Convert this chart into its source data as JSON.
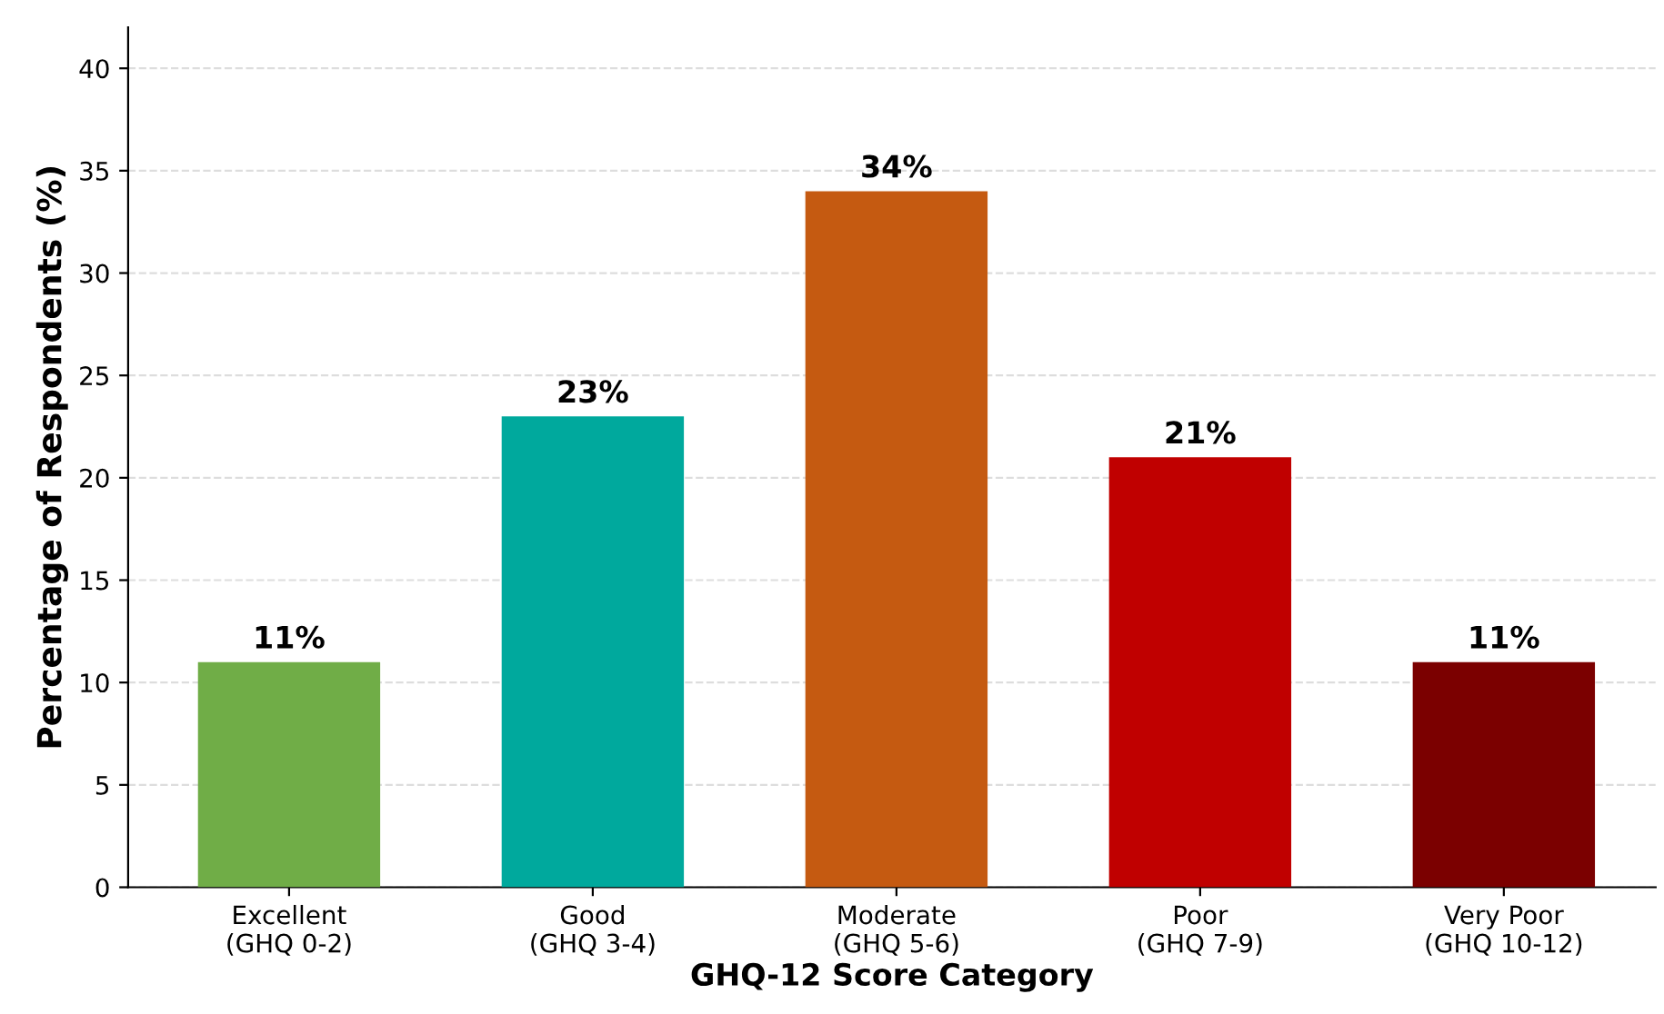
{
  "chart_data": {
    "type": "bar",
    "xlabel": "GHQ-12 Score Category",
    "ylabel": "Percentage of Respondents (%)",
    "categories": [
      "Excellent\n(GHQ 0-2)",
      "Good\n(GHQ 3-4)",
      "Moderate\n(GHQ 5-6)",
      "Poor\n(GHQ 7-9)",
      "Very Poor\n(GHQ 10-12)"
    ],
    "values": [
      11,
      23,
      34,
      21,
      11
    ],
    "value_labels": [
      "11%",
      "23%",
      "34%",
      "21%",
      "11%"
    ],
    "colors": [
      "#70ad47",
      "#00a99d",
      "#c55a11",
      "#c00000",
      "#7b0000"
    ],
    "ylim": [
      0,
      42
    ],
    "yticks": [
      0,
      5,
      10,
      15,
      20,
      25,
      30,
      35,
      40
    ],
    "grid": "y",
    "legend": false
  }
}
